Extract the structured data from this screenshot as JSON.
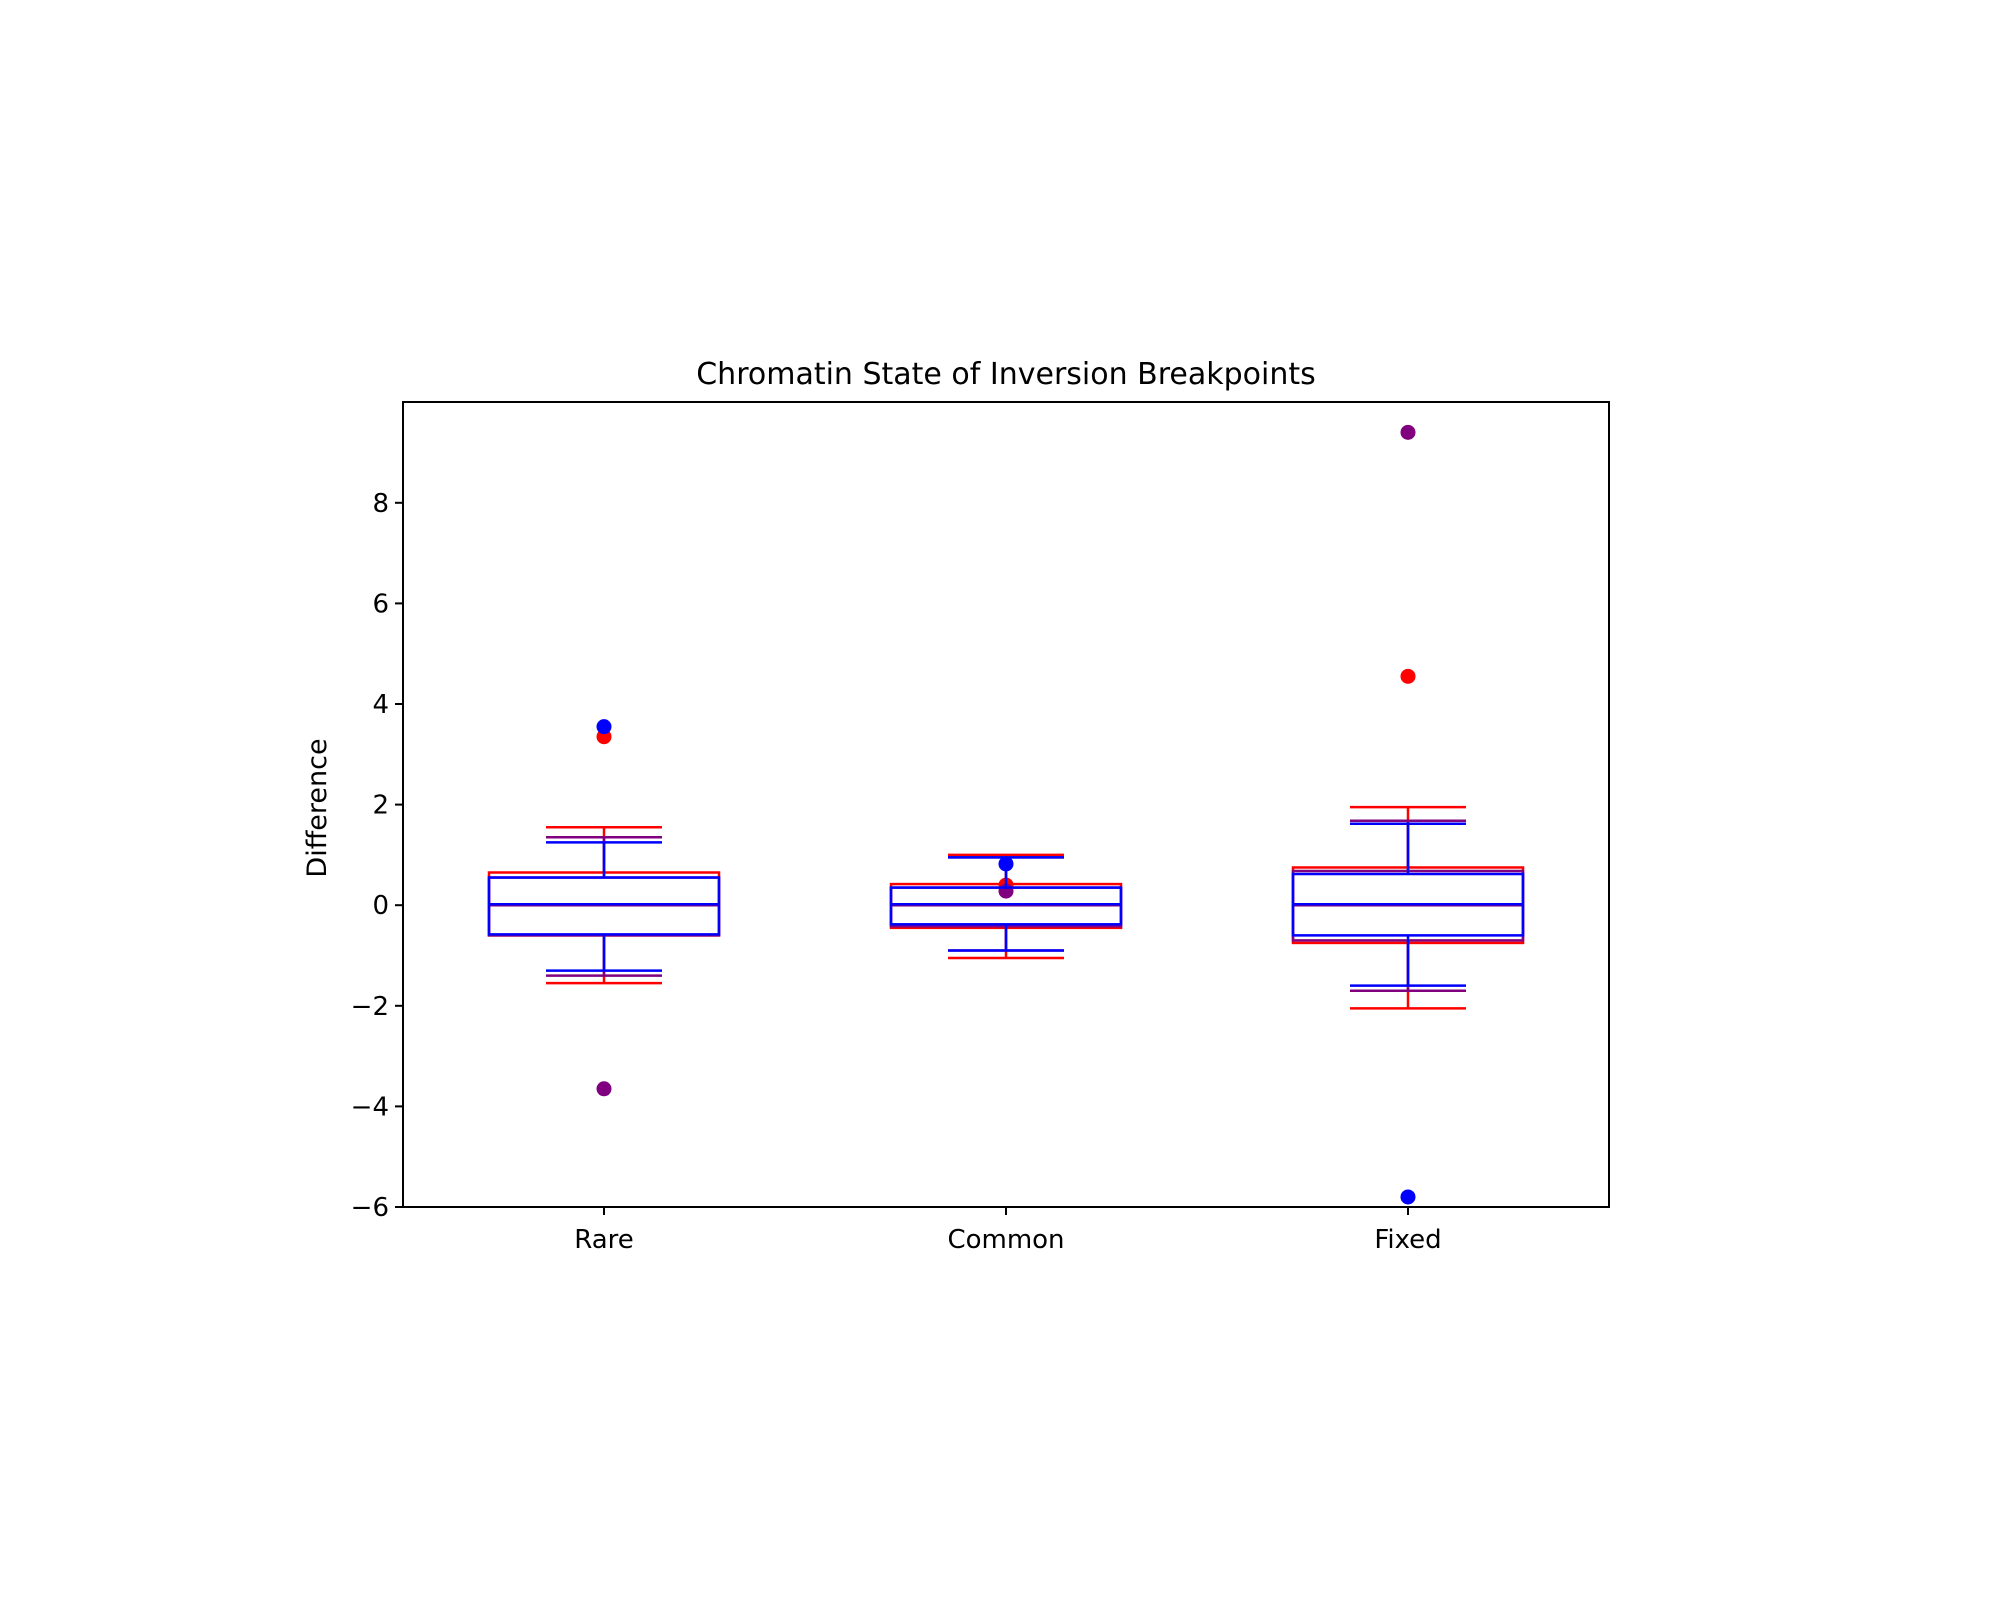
{
  "chart_data": {
    "type": "box",
    "title": "Chromatin State of Inversion Breakpoints",
    "xlabel": "",
    "ylabel": "Difference",
    "categories": [
      "Rare",
      "Common",
      "Fixed"
    ],
    "ylim": [
      -6,
      10
    ],
    "yticks": [
      -6,
      -4,
      -2,
      0,
      2,
      4,
      6,
      8
    ],
    "ytick_labels": [
      "−6",
      "−4",
      "−2",
      "0",
      "2",
      "4",
      "6",
      "8"
    ],
    "grid": false,
    "series": [
      {
        "color": "#ff0000",
        "boxes": [
          {
            "whislo": -1.55,
            "q1": -0.6,
            "med": 0.0,
            "q3": 0.65,
            "whishi": 1.55,
            "fliers": [
              3.35
            ]
          },
          {
            "whislo": -1.05,
            "q1": -0.45,
            "med": 0.0,
            "q3": 0.42,
            "whishi": 1.0,
            "fliers": [
              0.4
            ]
          },
          {
            "whislo": -2.05,
            "q1": -0.75,
            "med": 0.0,
            "q3": 0.75,
            "whishi": 1.95,
            "fliers": [
              4.55
            ]
          }
        ]
      },
      {
        "color": "#800080",
        "boxes": [
          {
            "whislo": -1.4,
            "q1": -0.6,
            "med": 0.0,
            "q3": 0.55,
            "whishi": 1.35,
            "fliers": [
              -3.65
            ]
          },
          {
            "whislo": -0.9,
            "q1": -0.42,
            "med": 0.0,
            "q3": 0.35,
            "whishi": 0.95,
            "fliers": [
              0.28
            ]
          },
          {
            "whislo": -1.7,
            "q1": -0.7,
            "med": 0.0,
            "q3": 0.68,
            "whishi": 1.68,
            "fliers": [
              9.4
            ]
          }
        ]
      },
      {
        "color": "#0000ff",
        "boxes": [
          {
            "whislo": -1.3,
            "q1": -0.58,
            "med": 0.02,
            "q3": 0.55,
            "whishi": 1.25,
            "fliers": [
              3.55
            ]
          },
          {
            "whislo": -0.9,
            "q1": -0.38,
            "med": 0.02,
            "q3": 0.35,
            "whishi": 0.95,
            "fliers": [
              0.82
            ]
          },
          {
            "whislo": -1.6,
            "q1": -0.6,
            "med": 0.02,
            "q3": 0.62,
            "whishi": 1.62,
            "fliers": [
              -5.8
            ]
          }
        ]
      }
    ]
  }
}
